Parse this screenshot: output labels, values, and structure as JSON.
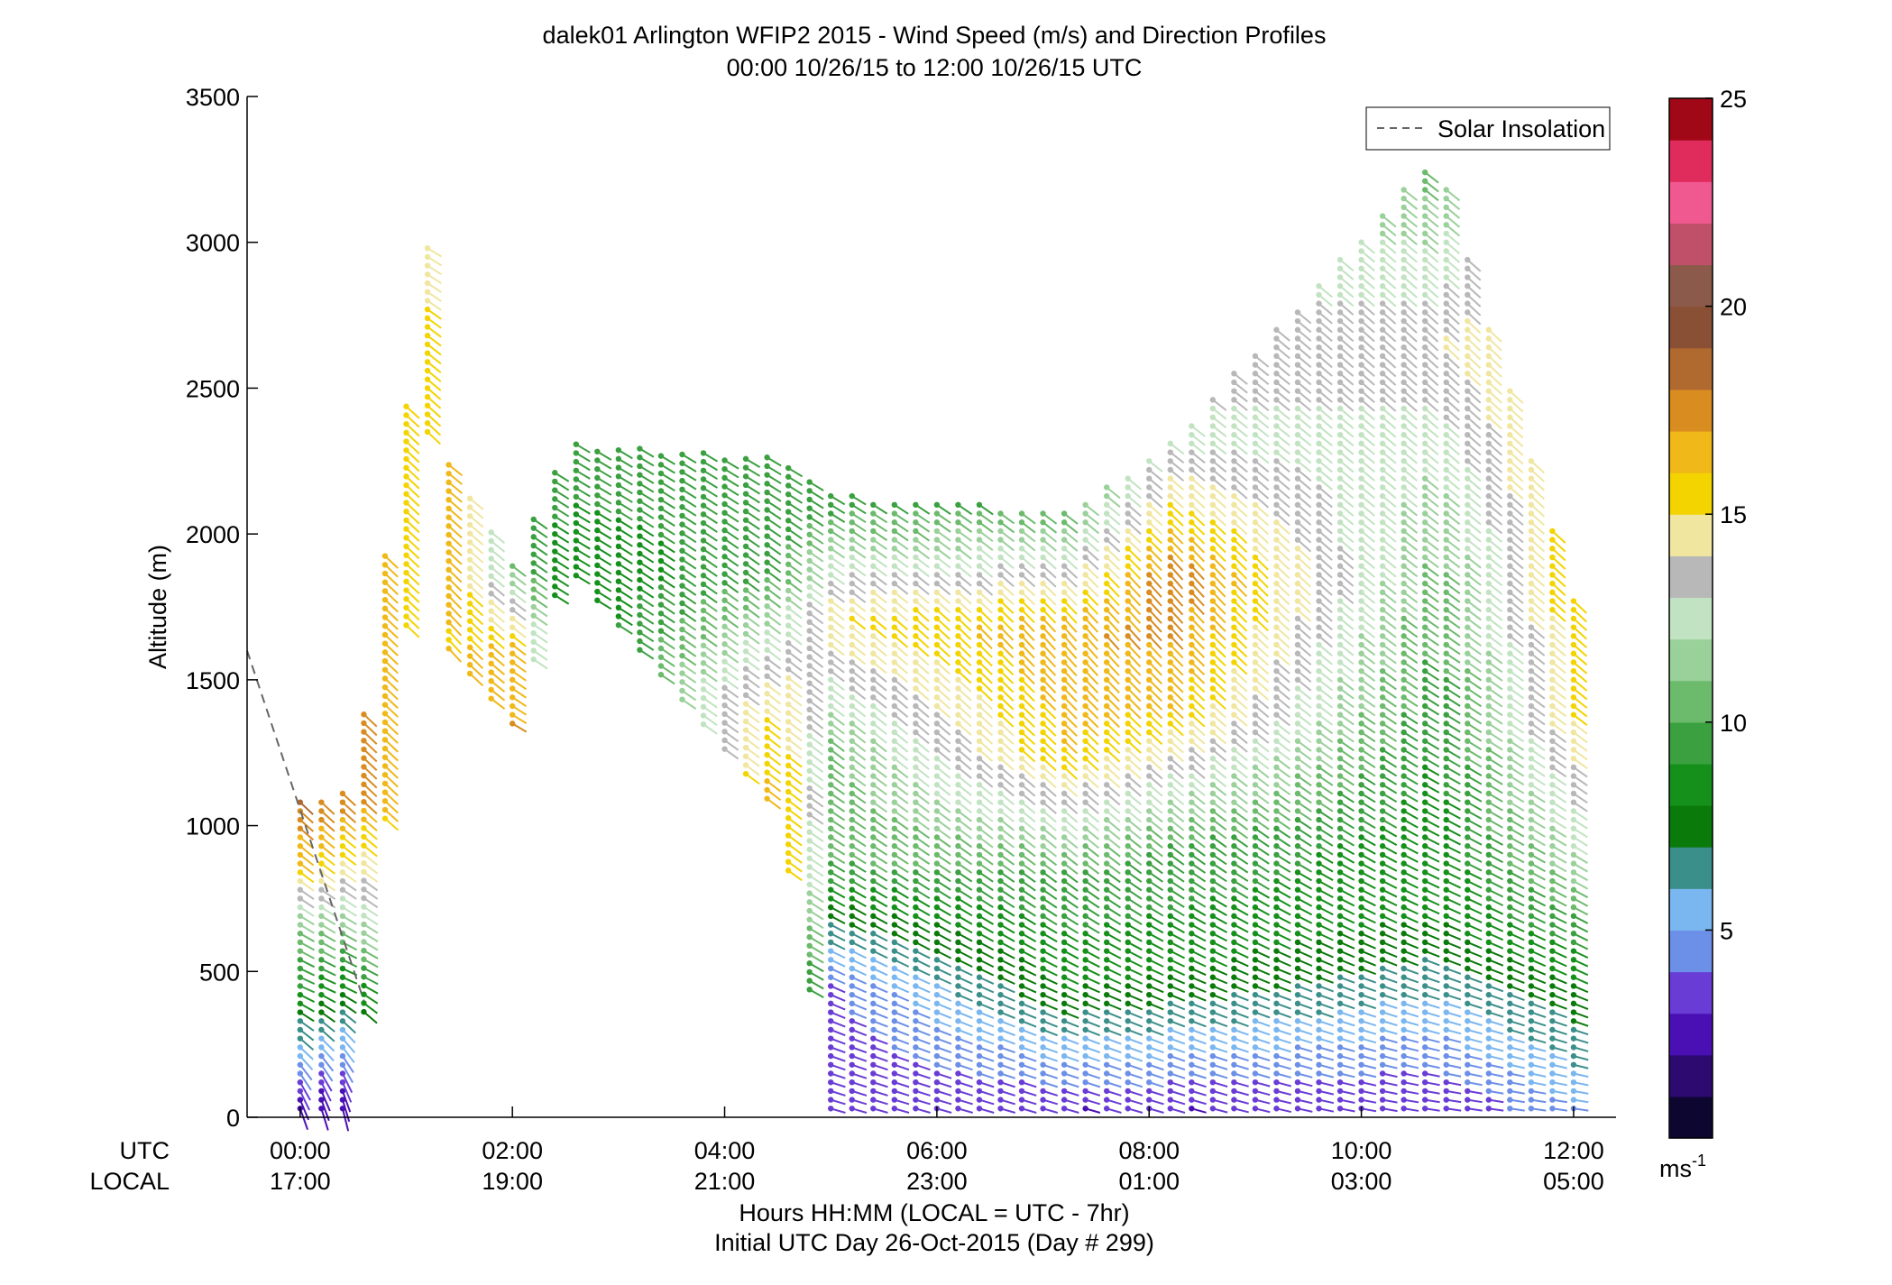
{
  "chart_data": {
    "type": "wind-barb profile (time-height)",
    "title": "dalek01 Arlington WFIP2 2015 - Wind Speed (m/s) and Direction Profiles",
    "subtitle": "00:00 10/26/15 to 12:00 10/26/15  UTC",
    "ylabel": "Altitude (m)",
    "xlabel": "Hours HH:MM  (LOCAL = UTC - 7hr)",
    "xlabel2": "Initial UTC Day 26-Oct-2015 (Day # 299)",
    "utc_row_label": "UTC",
    "local_row_label": "LOCAL",
    "xlim_hours": [
      -0.5,
      12.4
    ],
    "ylim": [
      0,
      3500
    ],
    "yticks": [
      0,
      500,
      1000,
      1500,
      2000,
      2500,
      3000,
      3500
    ],
    "yticklabels": [
      "0",
      "500",
      "1000",
      "1500",
      "2000",
      "2500",
      "3000",
      "3500"
    ],
    "xticks_hours": [
      0,
      2,
      4,
      6,
      8,
      10,
      12
    ],
    "xticklabels_utc": [
      "00:00",
      "02:00",
      "04:00",
      "06:00",
      "08:00",
      "10:00",
      "12:00"
    ],
    "xticklabels_local": [
      "17:00",
      "19:00",
      "21:00",
      "23:00",
      "01:00",
      "03:00",
      "05:00"
    ],
    "legend": {
      "entries": [
        "Solar Insolation"
      ],
      "location": "top-right"
    },
    "solar_insolation": {
      "x_hours": [
        -0.5,
        0.6
      ],
      "y": [
        1600,
        400
      ]
    },
    "colorbar": {
      "range": [
        0,
        25
      ],
      "ticks": [
        5,
        10,
        15,
        20,
        25
      ],
      "ticklabels": [
        "5",
        "10",
        "15",
        "20",
        "25"
      ],
      "unit_label": "ms",
      "unit_superscript": "-1",
      "colors": [
        "#0d0630",
        "#2c0a70",
        "#4a10b4",
        "#6a3cd6",
        "#6c8fe8",
        "#7ab6f0",
        "#3b8f8a",
        "#0a7a0a",
        "#15901a",
        "#3aa040",
        "#6cba6c",
        "#9ad09a",
        "#c2e3c2",
        "#b8b8b8",
        "#f0e6a0",
        "#f3d400",
        "#f0b818",
        "#d98c20",
        "#b06a30",
        "#8a5035",
        "#8c5a4a",
        "#c0506a",
        "#f05890",
        "#e02c5c",
        "#a00818"
      ]
    },
    "series": [
      {
        "x_hours": 0.05,
        "heights": [
          30,
          1080
        ],
        "speeds": [
          2,
          5.5,
          9,
          11,
          16,
          18
        ],
        "dirs": [
          210,
          240,
          255,
          250,
          245,
          240
        ]
      },
      {
        "x_hours": 0.5,
        "heights": [
          30,
          1130
        ],
        "speeds": [
          2,
          5,
          8,
          12,
          15,
          18
        ],
        "dirs": [
          200,
          230,
          255,
          250,
          245,
          240
        ]
      },
      {
        "x_hours": 1.2,
        "heights": [
          2350,
          2990
        ],
        "speeds": [
          15,
          15.5,
          14
        ],
        "dirs": [
          240,
          245,
          250
        ]
      },
      {
        "x_hours": 1.3,
        "heights": [
          1650,
          2310
        ],
        "speeds": [
          16,
          18,
          17
        ],
        "dirs": [
          235,
          240,
          245
        ]
      },
      {
        "x_hours": 2.0,
        "heights": [
          1350,
          1910
        ],
        "speeds": [
          17,
          16,
          10
        ],
        "dirs": [
          250,
          245,
          245
        ]
      },
      {
        "x_hours": 2.5,
        "heights": [
          1900,
          2310
        ],
        "speeds": [
          8,
          9,
          9
        ],
        "dirs": [
          250,
          250,
          250
        ]
      },
      {
        "x_hours": 4.5,
        "heights": [
          1050,
          2260
        ],
        "speeds": [
          17,
          15,
          10,
          9
        ],
        "dirs": [
          245,
          245,
          245,
          250
        ]
      },
      {
        "x_hours": 5.0,
        "heights": [
          30,
          2140
        ],
        "speeds": [
          3,
          4,
          10,
          11,
          15,
          9
        ],
        "dirs": [
          260,
          255,
          250,
          245,
          245,
          250
        ]
      },
      {
        "x_hours": 7.2,
        "heights": [
          30,
          2080
        ],
        "speeds": [
          3,
          8,
          10,
          16,
          17,
          10
        ],
        "dirs": [
          260,
          255,
          245,
          240,
          235,
          245
        ]
      },
      {
        "x_hours": 8.2,
        "heights": [
          30,
          2310
        ],
        "speeds": [
          3,
          8,
          10,
          16,
          18,
          13
        ],
        "dirs": [
          260,
          255,
          245,
          240,
          235,
          245
        ]
      },
      {
        "x_hours": 10.7,
        "heights": [
          30,
          3310
        ],
        "speeds": [
          3,
          8,
          9,
          11,
          14,
          10
        ],
        "dirs": [
          265,
          255,
          250,
          245,
          240,
          245
        ]
      },
      {
        "x_hours": 12.0,
        "heights": [
          30,
          1790
        ],
        "speeds": [
          5,
          8,
          12,
          15,
          16
        ],
        "dirs": [
          265,
          255,
          250,
          245,
          240
        ]
      }
    ]
  }
}
